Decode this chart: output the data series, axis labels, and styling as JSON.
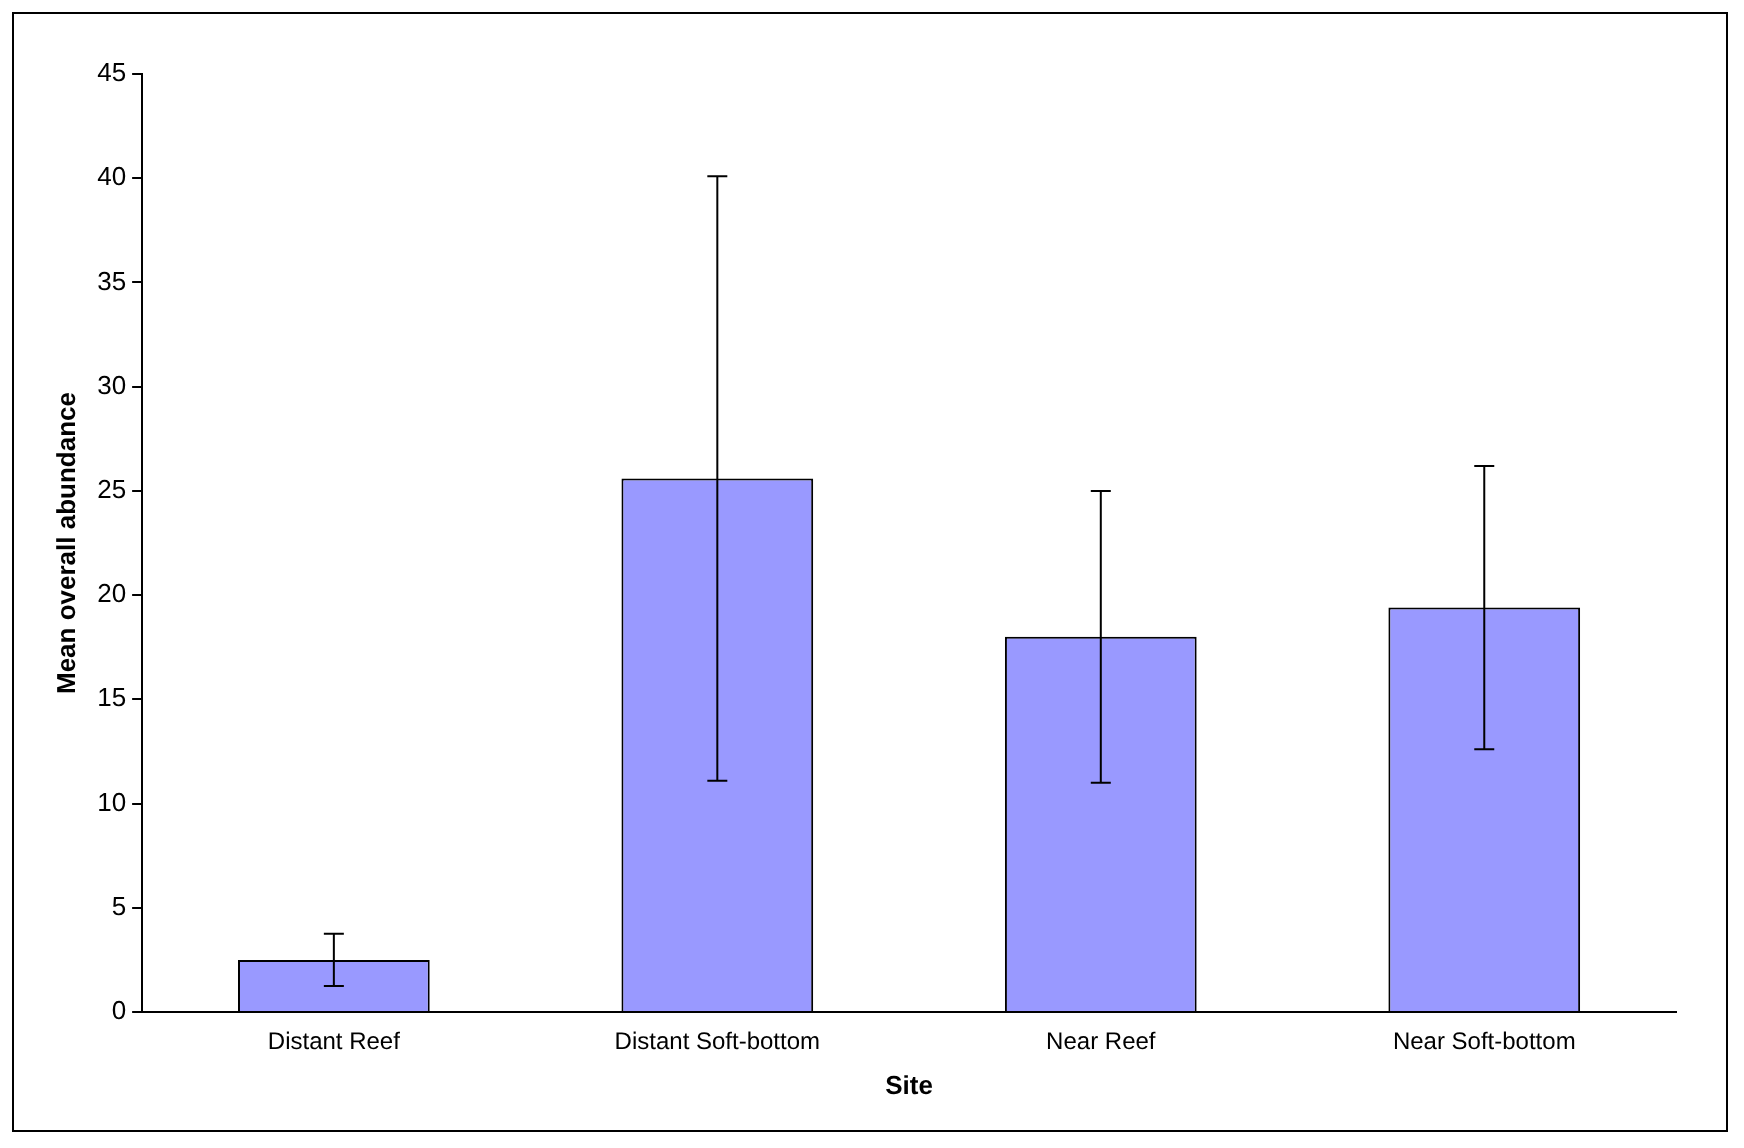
{
  "chart_data": {
    "type": "bar",
    "xlabel": "Site",
    "ylabel": "Mean overall abundance",
    "categories": [
      "Distant Reef",
      "Distant Soft-bottom",
      "Near Reef",
      "Near Soft-bottom"
    ],
    "values": [
      2.5,
      25.6,
      18.0,
      19.4
    ],
    "color": "#9999ff",
    "errors": [
      1.25,
      14.5,
      7.0,
      6.8
    ],
    "ylim": [
      0,
      45
    ],
    "yticks": [
      0,
      5,
      10,
      15,
      20,
      25,
      30,
      35,
      40,
      45
    ],
    "grid": false,
    "legend": false
  }
}
